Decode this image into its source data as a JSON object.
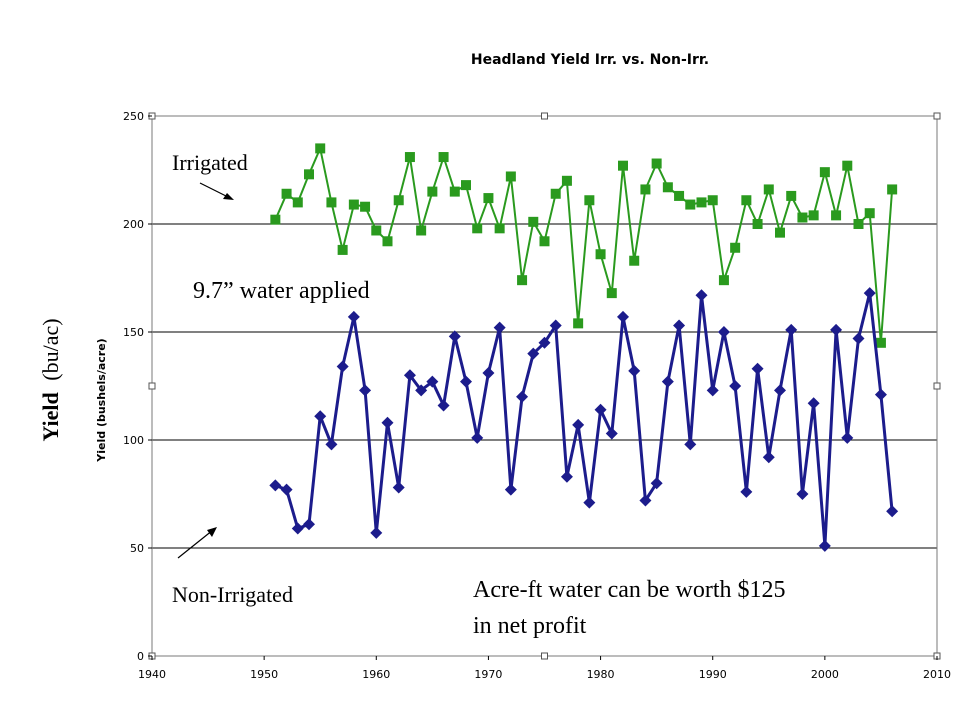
{
  "chart_data": {
    "type": "line",
    "title": "Headland Yield Irr. vs. Non-Irr.",
    "ylabel_inner": "Yield (bushels/acre)",
    "ylabel_outer_bold": "Yield",
    "ylabel_outer_units": "(bu/ac)",
    "xlim": [
      1940,
      2010
    ],
    "ylim": [
      0,
      250
    ],
    "x_ticks": [
      1940,
      1950,
      1960,
      1970,
      1980,
      1990,
      2000,
      2010
    ],
    "y_ticks": [
      0,
      50,
      100,
      150,
      200,
      250
    ],
    "grid": "horizontal",
    "x": [
      1951,
      1952,
      1953,
      1954,
      1955,
      1956,
      1957,
      1958,
      1959,
      1960,
      1961,
      1962,
      1963,
      1964,
      1965,
      1966,
      1967,
      1968,
      1969,
      1970,
      1971,
      1972,
      1973,
      1974,
      1975,
      1976,
      1977,
      1978,
      1979,
      1980,
      1981,
      1982,
      1983,
      1984,
      1985,
      1986,
      1987,
      1988,
      1989,
      1990,
      1991,
      1992,
      1993,
      1994,
      1995,
      1996,
      1997,
      1998,
      1999,
      2000,
      2001,
      2002,
      2003,
      2004,
      2005,
      2006
    ],
    "series": [
      {
        "key": "irrigated",
        "color": "#2a9a1e",
        "marker": "square",
        "values": [
          202,
          214,
          210,
          223,
          235,
          210,
          188,
          209,
          208,
          197,
          192,
          211,
          231,
          197,
          215,
          231,
          215,
          218,
          198,
          212,
          198,
          222,
          174,
          201,
          192,
          214,
          220,
          154,
          211,
          186,
          168,
          227,
          183,
          216,
          228,
          217,
          213,
          209,
          210,
          211,
          174,
          189,
          211,
          200,
          216,
          196,
          213,
          203,
          204,
          224,
          204,
          227,
          200,
          205,
          145,
          216
        ]
      },
      {
        "key": "non_irrigated",
        "color": "#1c1c8c",
        "marker": "diamond",
        "values": [
          79,
          77,
          59,
          61,
          111,
          98,
          134,
          157,
          123,
          57,
          108,
          78,
          130,
          123,
          127,
          116,
          148,
          127,
          101,
          131,
          152,
          77,
          120,
          140,
          145,
          153,
          83,
          107,
          71,
          114,
          103,
          157,
          132,
          72,
          80,
          127,
          153,
          98,
          167,
          123,
          150,
          125,
          76,
          133,
          92,
          123,
          151,
          75,
          117,
          51,
          151,
          101,
          147,
          168,
          121,
          67
        ]
      }
    ],
    "annotations": {
      "irrigated_label": "Irrigated",
      "water_applied": "9.7” water applied",
      "non_irrigated_label": "Non-Irrigated",
      "profit_line1": "Acre-ft water can be worth $125",
      "profit_line2": "in net profit"
    }
  }
}
